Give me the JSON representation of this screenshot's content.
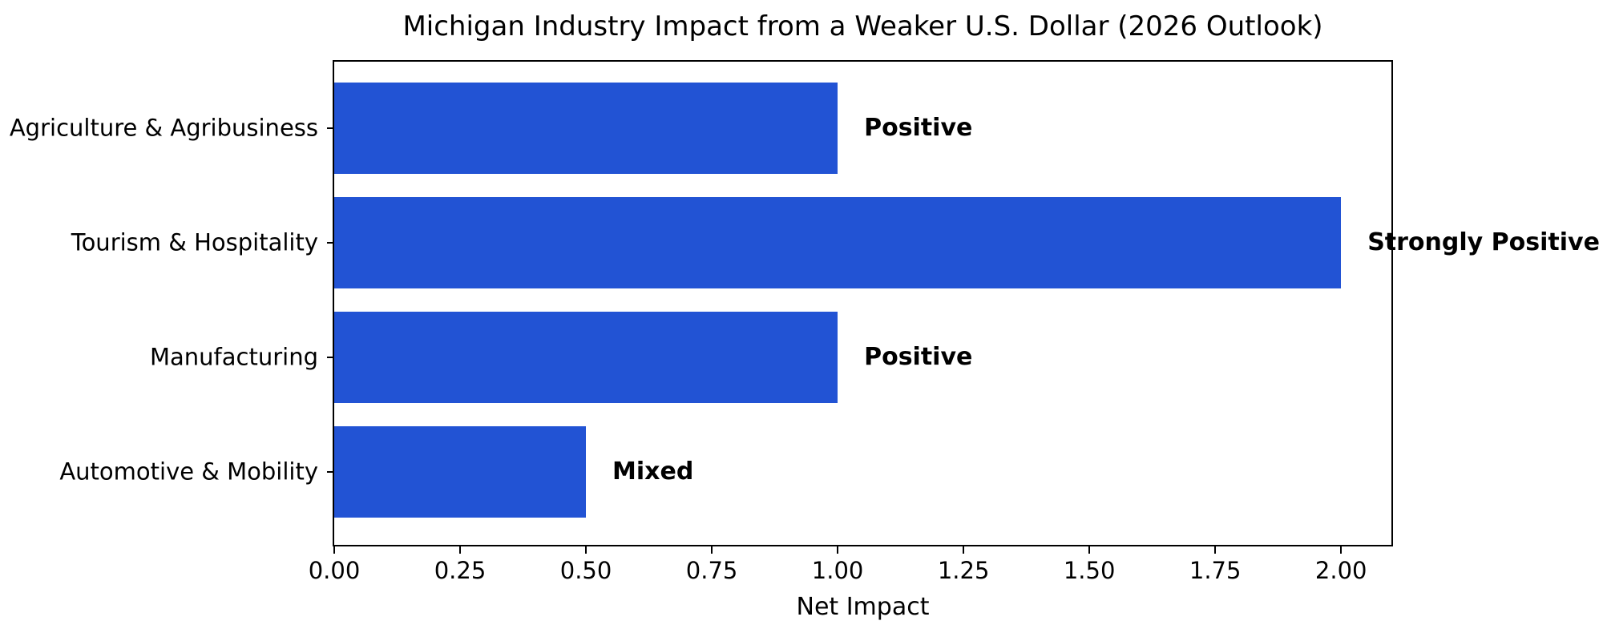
{
  "chart_data": {
    "type": "bar",
    "orientation": "horizontal",
    "title": "Michigan Industry Impact from a Weaker U.S. Dollar (2026 Outlook)",
    "xlabel": "Net Impact",
    "categories": [
      "Agriculture & Agribusiness",
      "Tourism & Hospitality",
      "Manufacturing",
      "Automotive & Mobility"
    ],
    "values": [
      1.0,
      2.0,
      1.0,
      0.5
    ],
    "bar_labels": [
      "Positive",
      "Strongly Positive",
      "Positive",
      "Mixed"
    ],
    "xlim": [
      0,
      2.1
    ],
    "x_ticks": [
      {
        "value": 0.0,
        "label": "0.00"
      },
      {
        "value": 0.25,
        "label": "0.25"
      },
      {
        "value": 0.5,
        "label": "0.50"
      },
      {
        "value": 0.75,
        "label": "0.75"
      },
      {
        "value": 1.0,
        "label": "1.00"
      },
      {
        "value": 1.25,
        "label": "1.25"
      },
      {
        "value": 1.5,
        "label": "1.50"
      },
      {
        "value": 1.75,
        "label": "1.75"
      },
      {
        "value": 2.0,
        "label": "2.00"
      }
    ],
    "bar_color": "#2253d4",
    "text_color": "#000000",
    "spine_color": "#000000",
    "grid": false,
    "legend": null
  }
}
